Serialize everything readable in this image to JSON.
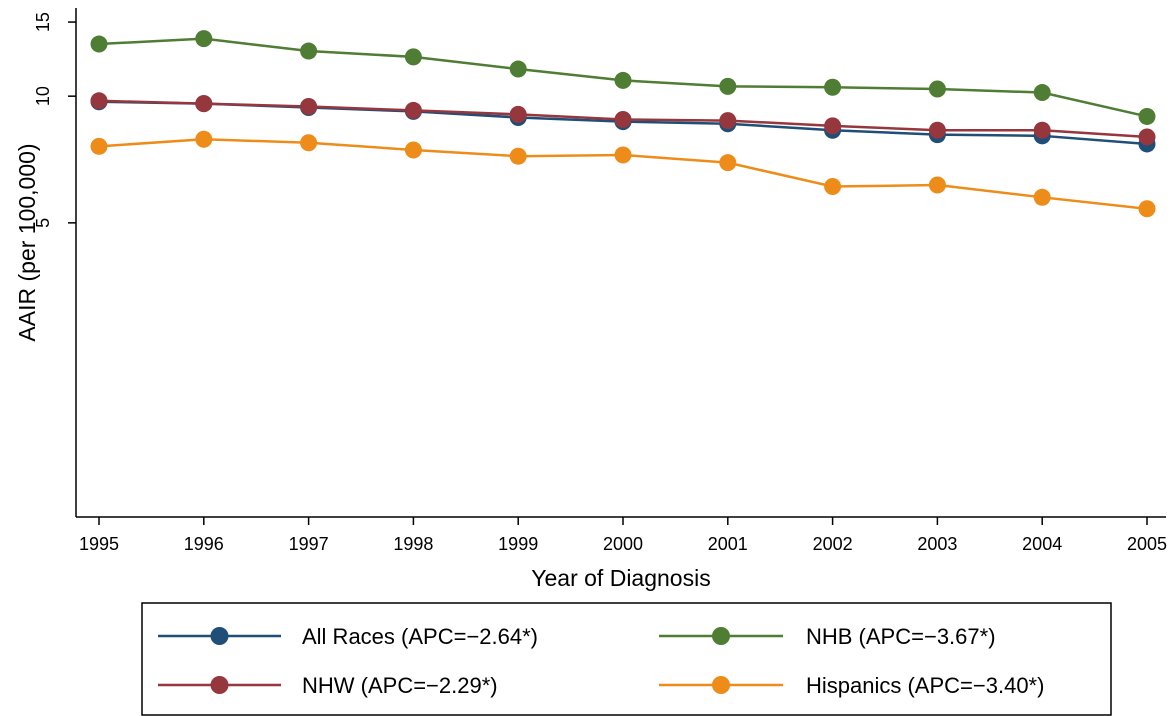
{
  "chart_data": {
    "type": "line",
    "title": "",
    "xlabel": "Year of Diagnosis",
    "ylabel": "AAIR (per 100,000)",
    "x": [
      1995,
      1996,
      1997,
      1998,
      1999,
      2000,
      2001,
      2002,
      2003,
      2004,
      2005
    ],
    "x_tick_labels": [
      "1995",
      "1996",
      "1997",
      "1998",
      "1999",
      "2000",
      "2001",
      "2002",
      "2003",
      "2004",
      "2005"
    ],
    "y_ticks": [
      5,
      10,
      15
    ],
    "y_tick_labels": [
      "5",
      "10",
      "15"
    ],
    "y_scale": "log",
    "ylim": [
      1,
      16.2
    ],
    "grid": false,
    "legend_position": "bottom",
    "series": [
      {
        "name": "All Races (APC=−2.64*)",
        "color": "#1f4e79",
        "values": [
          9.7,
          9.6,
          9.4,
          9.2,
          8.9,
          8.7,
          8.6,
          8.3,
          8.1,
          8.05,
          7.7
        ]
      },
      {
        "name": "NHB (APC=−3.67*)",
        "color": "#4e7d33",
        "values": [
          13.3,
          13.7,
          12.8,
          12.4,
          11.6,
          10.9,
          10.55,
          10.5,
          10.4,
          10.2,
          8.95
        ]
      },
      {
        "name": "NHW (APC=−2.29*)",
        "color": "#96363d",
        "values": [
          9.75,
          9.6,
          9.45,
          9.25,
          9.05,
          8.8,
          8.75,
          8.5,
          8.3,
          8.3,
          8.0
        ]
      },
      {
        "name": "Hispanics (APC=−3.40*)",
        "color": "#ee8c1a",
        "values": [
          7.6,
          7.9,
          7.75,
          7.45,
          7.2,
          7.25,
          6.95,
          6.1,
          6.15,
          5.75,
          5.4
        ]
      }
    ],
    "legend_order": [
      0,
      1,
      2,
      3
    ]
  }
}
